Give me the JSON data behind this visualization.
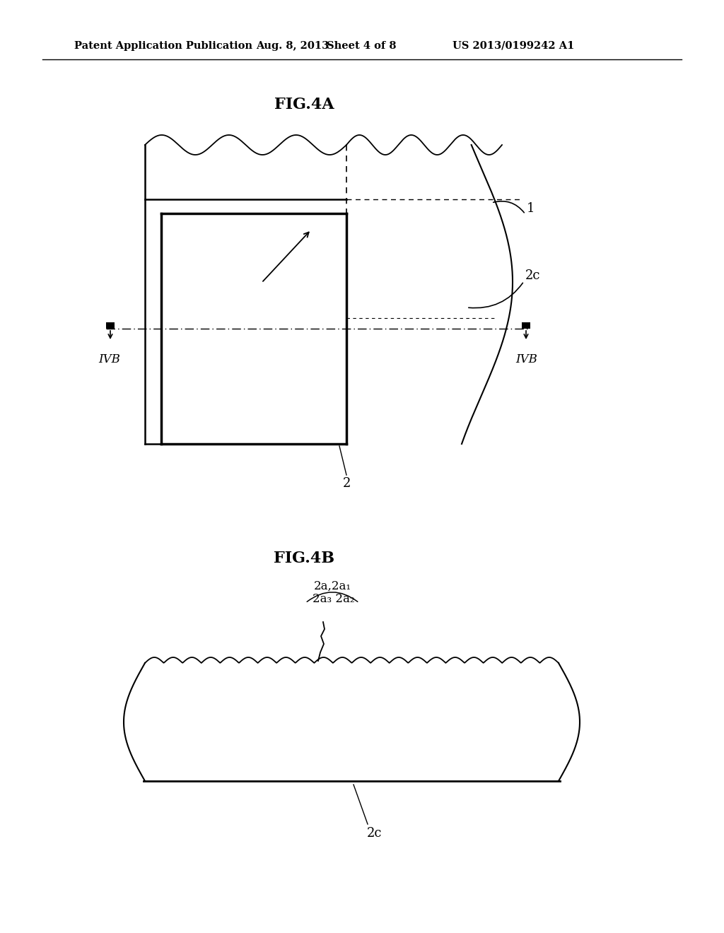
{
  "bg_color": "#ffffff",
  "header_text": "Patent Application Publication",
  "header_date": "Aug. 8, 2013",
  "header_sheet": "Sheet 4 of 8",
  "header_patent": "US 2013/0199242 A1",
  "fig4a_title": "FIG.4A",
  "fig4b_title": "FIG.4B",
  "label_1": "1",
  "label_2": "2",
  "label_2c_4a": "2c",
  "label_2c_4b": "2c",
  "label_IVB_left": "IVB",
  "label_IVB_right": "IVB",
  "label_2a": "2a,2a₁",
  "label_2a3_2a2": "2a₃ 2a₂"
}
